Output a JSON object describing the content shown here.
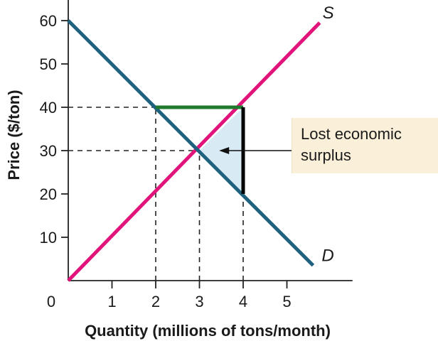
{
  "chart_data": {
    "type": "line",
    "title": "",
    "xlabel": "Quantity (millions of tons/month)",
    "ylabel": "Price ($/ton)",
    "xlim": [
      0,
      6.5
    ],
    "ylim": [
      0,
      65
    ],
    "x_ticks": [
      0,
      1,
      2,
      3,
      4,
      5
    ],
    "y_ticks": [
      10,
      20,
      30,
      40,
      50,
      60
    ],
    "grid": false,
    "series": [
      {
        "name": "S",
        "color": "#e0147a",
        "points": [
          [
            0,
            0
          ],
          [
            5.75,
            59.5
          ]
        ]
      },
      {
        "name": "D",
        "color": "#1e6280",
        "points": [
          [
            0,
            60
          ],
          [
            5.6,
            3.5
          ]
        ]
      }
    ],
    "equilibrium": {
      "x": 3,
      "y": 30
    },
    "price_floor_segment": {
      "color": "#1f7a2e",
      "from": [
        2,
        40
      ],
      "to": [
        4,
        40
      ]
    },
    "quantity_segment": {
      "color": "#000000",
      "from": [
        4,
        40
      ],
      "to": [
        4,
        20
      ]
    },
    "dashed_guides": [
      {
        "from": [
          0,
          40
        ],
        "to": [
          2,
          40
        ]
      },
      {
        "from": [
          0,
          30
        ],
        "to": [
          3,
          30
        ]
      },
      {
        "from": [
          2,
          0
        ],
        "to": [
          2,
          40
        ]
      },
      {
        "from": [
          3,
          0
        ],
        "to": [
          3,
          30
        ]
      },
      {
        "from": [
          4,
          0
        ],
        "to": [
          4,
          20
        ]
      }
    ],
    "shaded_region": {
      "fill": "#d8eaf4",
      "vertices": [
        [
          3,
          30
        ],
        [
          4,
          40
        ],
        [
          4,
          20
        ]
      ]
    },
    "annotation": {
      "lines": [
        "Lost economic",
        "surplus"
      ],
      "box_color": "#faefd9",
      "arrow_target": [
        3.45,
        30
      ]
    }
  }
}
